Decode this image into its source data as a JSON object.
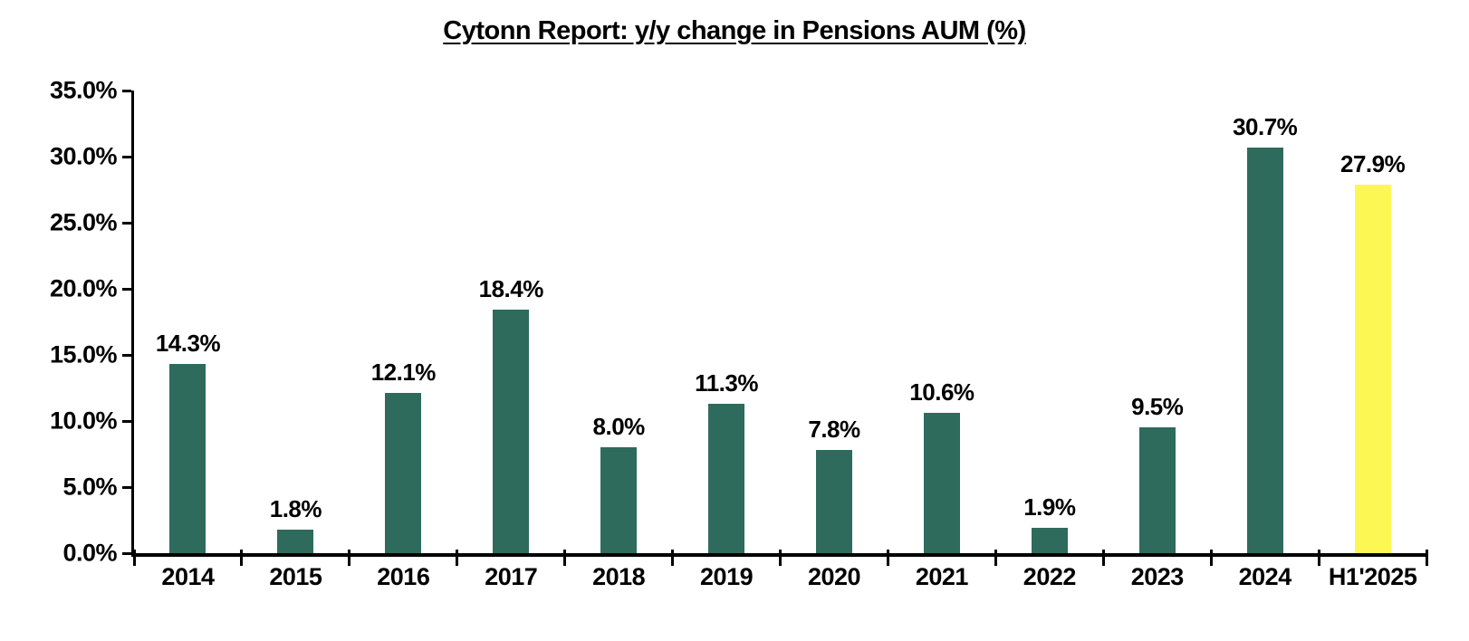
{
  "chart_data": {
    "type": "bar",
    "title": "Cytonn Report: y/y change in Pensions AUM (%)",
    "categories": [
      "2014",
      "2015",
      "2016",
      "2017",
      "2018",
      "2019",
      "2020",
      "2021",
      "2022",
      "2023",
      "2024",
      "H1'2025"
    ],
    "values": [
      14.3,
      1.8,
      12.1,
      18.4,
      8.0,
      11.3,
      7.8,
      10.6,
      1.9,
      9.5,
      30.7,
      27.9
    ],
    "data_labels": [
      "14.3%",
      "1.8%",
      "12.1%",
      "18.4%",
      "8.0%",
      "11.3%",
      "7.8%",
      "10.6%",
      "1.9%",
      "9.5%",
      "30.7%",
      "27.9%"
    ],
    "highlight_category": "H1'2025",
    "xlabel": "",
    "ylabel": "",
    "ylim": [
      0,
      35
    ],
    "ytick_step": 5,
    "ytick_labels": [
      "0.0%",
      "5.0%",
      "10.0%",
      "15.0%",
      "20.0%",
      "25.0%",
      "30.0%",
      "35.0%"
    ],
    "grid": false,
    "legend": false
  },
  "colors": {
    "bar": "#2E6B5D",
    "highlight_bar": "#FDF754",
    "axis": "#000000",
    "text": "#000000",
    "background": "#FFFFFF"
  }
}
